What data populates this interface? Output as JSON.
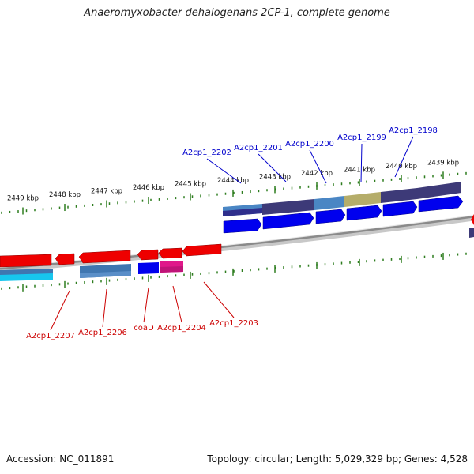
{
  "title": "Anaeromyxobacter dehalogenans 2CP-1, complete genome",
  "accession": "Accession: NC_011891",
  "summary": "Topology: circular; Length: 5,029,329 bp; Genes: 4,528",
  "colors": {
    "forward_gene": "#0000ee",
    "reverse_gene": "#ee0000",
    "forward_label": "#0000cc",
    "reverse_label": "#cc0000",
    "tick": "#2e7d1f",
    "backbone": "#8a8a8a",
    "cds_forward": "#3d3a78",
    "cds_light": "#4a86c4",
    "cds_olive": "#b5ad6a",
    "cds_reverse_light": "#17c6ee",
    "cds_steel": "#3f76b0",
    "cds_magenta": "#e0188a"
  },
  "scale": {
    "labels": [
      "2449 kbp",
      "2448 kbp",
      "2447 kbp",
      "2446 kbp",
      "2445 kbp",
      "2444 kbp",
      "2443 kbp",
      "2442 kbp",
      "2441 kbp",
      "2440 kbp",
      "2439 kbp"
    ]
  },
  "forward_genes": [
    {
      "label": "A2cp1_2202"
    },
    {
      "label": "A2cp1_2201"
    },
    {
      "label": "A2cp1_2200"
    },
    {
      "label": "A2cp1_2199"
    },
    {
      "label": "A2cp1_2198"
    }
  ],
  "reverse_genes": [
    {
      "label": "A2cp1_2207"
    },
    {
      "label": "A2cp1_2206"
    },
    {
      "label": "coaD"
    },
    {
      "label": "A2cp1_2204"
    },
    {
      "label": "A2cp1_2203"
    }
  ]
}
